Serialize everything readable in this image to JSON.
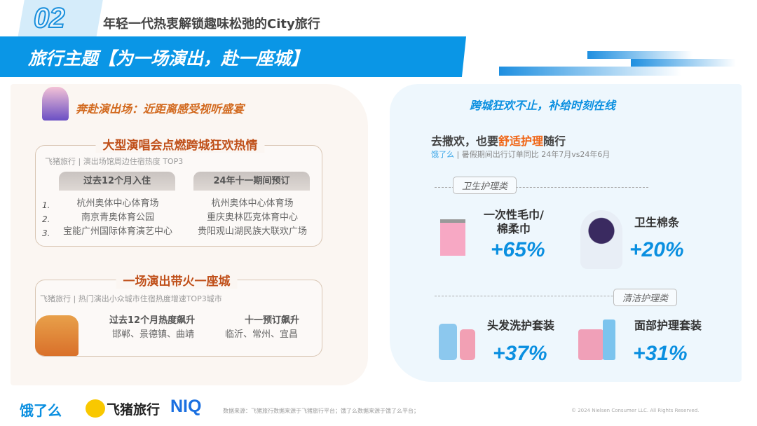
{
  "header": {
    "number": "02",
    "title": "年轻一代热衷解锁趣味松弛的City旅行",
    "banner": "旅行主题【为一场演出，赴一座城】"
  },
  "left": {
    "subtitle": "奔赴演出场：近距离感受视听盛宴",
    "box1": {
      "title": "大型演唱会点燃跨城狂欢热情",
      "source": "飞猪旅行 | 演出场馆周边住宿热度 TOP3",
      "col1": {
        "header": "过去12个月入住",
        "items": [
          "杭州奥体中心体育场",
          "南京青奥体育公园",
          "宝能广州国际体育演艺中心"
        ]
      },
      "col2": {
        "header": "24年十一期间预订",
        "items": [
          "杭州奥体中心体育场",
          "重庆奥林匹克体育中心",
          "贵阳观山湖民族大联欢广场"
        ]
      },
      "ranks": [
        "1.",
        "2.",
        "3."
      ]
    },
    "box2": {
      "title": "一场演出带火一座城",
      "source": "飞猪旅行 | 热门演出小众城市住宿热度增速TOP3城市",
      "col1": {
        "header": "过去12个月热度飙升",
        "value": "邯郸、景德镇、曲靖"
      },
      "col2": {
        "header": "十一预订飙升",
        "value": "临沂、常州、宜昌"
      }
    }
  },
  "right": {
    "title": "跨城狂欢不止，补给时刻在线",
    "headline_pre": "去撒欢，也要",
    "headline_hl": "舒适护理",
    "headline_post": "随行",
    "source_brand": "饿了么",
    "source_text": " | 暑假期间出行订单同比 24年7月vs24年6月",
    "cat1": "卫生护理类",
    "cat2": "清洁护理类",
    "items": [
      {
        "name": "一次性毛巾/\n棉柔巾",
        "pct": "+65%",
        "icon": "towel-icon"
      },
      {
        "name": "卫生棉条",
        "pct": "+20%",
        "icon": "woman-icon"
      },
      {
        "name": "头发洗护套装",
        "pct": "+37%",
        "icon": "shampoo-bottles-icon"
      },
      {
        "name": "面部护理套装",
        "pct": "+31%",
        "icon": "face-care-icon"
      }
    ]
  },
  "footer": {
    "logos": [
      "饿了么",
      "飞猪旅行",
      "NIQ"
    ],
    "source": "数据来源：飞猪旅行数据来源于飞猪旅行平台；饿了么数据来源于饿了么平台；",
    "copyright": "© 2024 Nielsen Consumer LLC. All Rights Reserved."
  },
  "colors": {
    "accent_blue": "#0a96e6",
    "orange": "#c0501a",
    "highlight": "#f06414"
  }
}
